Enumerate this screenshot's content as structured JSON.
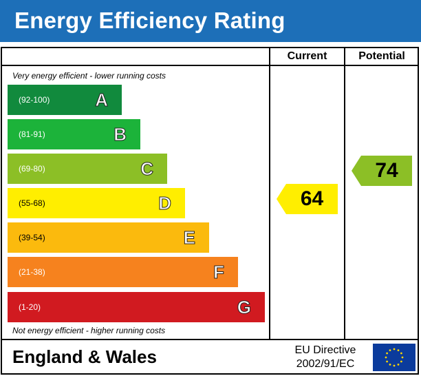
{
  "header": {
    "title": "Energy Efficiency Rating"
  },
  "columns": {
    "current": "Current",
    "potential": "Potential"
  },
  "notes": {
    "top": "Very energy efficient - lower running costs",
    "bottom": "Not energy efficient - higher running costs"
  },
  "footer": {
    "region": "England & Wales",
    "directive_line1": "EU Directive",
    "directive_line2": "2002/91/EC",
    "flag_icon": "eu-flag-icon"
  },
  "chart_data": {
    "type": "bar",
    "title": "Energy Efficiency Rating",
    "bands": [
      {
        "letter": "A",
        "range": "(92-100)",
        "color": "#118a3d",
        "range_color": "#ffffff"
      },
      {
        "letter": "B",
        "range": "(81-91)",
        "color": "#1cb33a",
        "range_color": "#ffffff"
      },
      {
        "letter": "C",
        "range": "(69-80)",
        "color": "#8cbf26",
        "range_color": "#ffffff"
      },
      {
        "letter": "D",
        "range": "(55-68)",
        "color": "#ffee00",
        "range_color": "#000000"
      },
      {
        "letter": "E",
        "range": "(39-54)",
        "color": "#fbba0d",
        "range_color": "#000000"
      },
      {
        "letter": "F",
        "range": "(21-38)",
        "color": "#f6821e",
        "range_color": "#ffffff"
      },
      {
        "letter": "G",
        "range": "(1-20)",
        "color": "#d11a20",
        "range_color": "#ffffff"
      }
    ],
    "current": {
      "value": 64,
      "band": "D",
      "color": "#ffee00"
    },
    "potential": {
      "value": 74,
      "band": "C",
      "color": "#8cbf26"
    }
  }
}
